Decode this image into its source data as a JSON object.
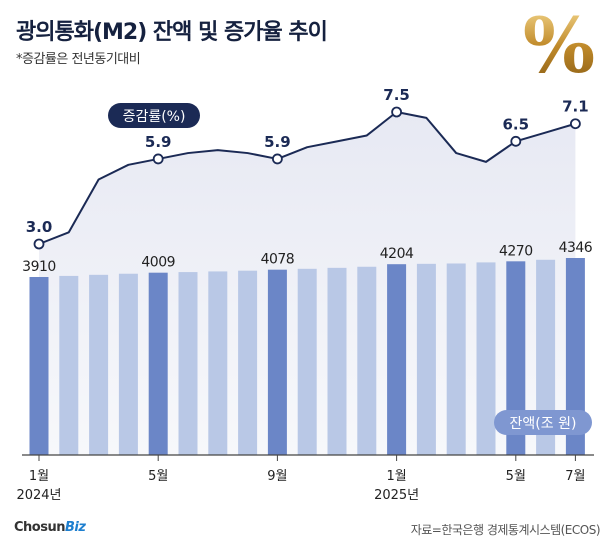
{
  "title": "광의통화(M2) 잔액 및 증가율 추이",
  "subtitle": "*증감률은 전년동기대비",
  "icon": "percent-gold-icon",
  "logo": {
    "main": "Chosun",
    "accent": "Biz"
  },
  "source": "자료=한국은행 경제통계시스템(ECOS)",
  "colors": {
    "bar_highlight": "#6b86c7",
    "bar_normal": "#b9c8e6",
    "line": "#1b2a55",
    "label_dark": "#1b2a55",
    "badge_bar": "#7f97d1",
    "area": "#eceef6"
  },
  "chart_data": {
    "type": "bar+line",
    "x": [
      "2024-01",
      "2024-02",
      "2024-03",
      "2024-04",
      "2024-05",
      "2024-06",
      "2024-07",
      "2024-08",
      "2024-09",
      "2024-10",
      "2024-11",
      "2024-12",
      "2025-01",
      "2025-02",
      "2025-03",
      "2025-04",
      "2025-05",
      "2025-06",
      "2025-07"
    ],
    "x_tick_labels": [
      {
        "index": 0,
        "line1": "1월",
        "line2": "2024년"
      },
      {
        "index": 4,
        "line1": "5월",
        "line2": ""
      },
      {
        "index": 8,
        "line1": "9월",
        "line2": ""
      },
      {
        "index": 12,
        "line1": "1월",
        "line2": "2025년"
      },
      {
        "index": 16,
        "line1": "5월",
        "line2": ""
      },
      {
        "index": 18,
        "line1": "7월",
        "line2": ""
      }
    ],
    "bars": {
      "name": "잔액(조 원)",
      "values": [
        3910,
        3935,
        3960,
        3985,
        4009,
        4023,
        4038,
        4055,
        4078,
        4098,
        4120,
        4145,
        4204,
        4212,
        4220,
        4245,
        4270,
        4305,
        4346
      ],
      "highlight": [
        0,
        4,
        8,
        12,
        16,
        18
      ],
      "labels": [
        {
          "index": 0,
          "text": "3910"
        },
        {
          "index": 4,
          "text": "4009"
        },
        {
          "index": 8,
          "text": "4078"
        },
        {
          "index": 12,
          "text": "4204"
        },
        {
          "index": 16,
          "text": "4270"
        },
        {
          "index": 18,
          "text": "4346"
        }
      ]
    },
    "line": {
      "name": "증감률(%)",
      "values": [
        3.0,
        3.4,
        5.2,
        5.7,
        5.9,
        6.1,
        6.2,
        6.1,
        5.9,
        6.3,
        6.5,
        6.7,
        7.5,
        7.3,
        6.1,
        5.8,
        6.5,
        6.8,
        7.1
      ],
      "markers": [
        0,
        4,
        8,
        12,
        16,
        18
      ],
      "labels": [
        {
          "index": 0,
          "text": "3.0"
        },
        {
          "index": 4,
          "text": "5.9"
        },
        {
          "index": 8,
          "text": "5.9"
        },
        {
          "index": 12,
          "text": "7.5"
        },
        {
          "index": 16,
          "text": "6.5"
        },
        {
          "index": 18,
          "text": "7.1"
        }
      ]
    },
    "line_ylim": [
      2.0,
      8.0
    ],
    "legend": {
      "line_badge": "증감률(%)",
      "bar_badge": "잔액(조 원)"
    }
  }
}
